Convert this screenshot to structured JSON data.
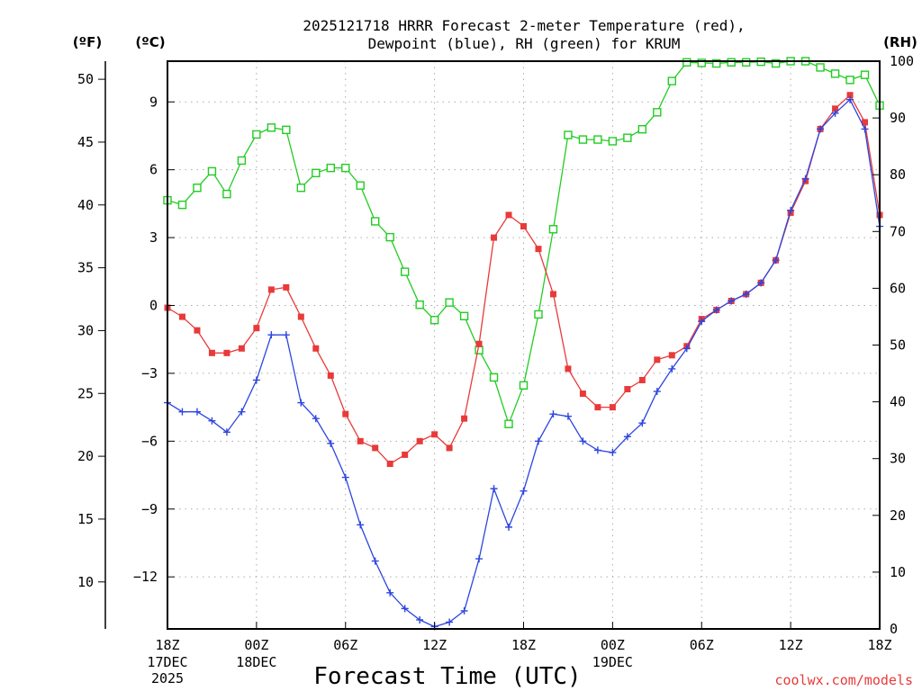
{
  "chart_data": {
    "type": "line",
    "title_line1": "2025121718 HRRR Forecast 2-meter Temperature (red),",
    "title_line2": "Dewpoint (blue), RH (green) for KRUM",
    "xlabel": "Forecast Time (UTC)",
    "unit_f": "(ºF)",
    "unit_c": "(ºC)",
    "unit_rh": "(RH)",
    "credit": "coolwx.com/models",
    "colors": {
      "temperature": "#e83a3a",
      "dewpoint": "#2d45e0",
      "rh": "#22cc22",
      "axis": "#000000",
      "grid": "#aaaaaa"
    },
    "x_range_hours": [
      0,
      48
    ],
    "ylim_c": [
      -14.3,
      10.8
    ],
    "ylim_rh": [
      0,
      100
    ],
    "x_ticks": [
      {
        "hour": 0,
        "label": "18Z",
        "sub1": "17DEC",
        "sub2": "2025"
      },
      {
        "hour": 6,
        "label": "00Z",
        "sub1": "18DEC",
        "sub2": ""
      },
      {
        "hour": 12,
        "label": "06Z",
        "sub1": "",
        "sub2": ""
      },
      {
        "hour": 18,
        "label": "12Z",
        "sub1": "",
        "sub2": ""
      },
      {
        "hour": 24,
        "label": "18Z",
        "sub1": "",
        "sub2": ""
      },
      {
        "hour": 30,
        "label": "00Z",
        "sub1": "19DEC",
        "sub2": ""
      },
      {
        "hour": 36,
        "label": "06Z",
        "sub1": "",
        "sub2": ""
      },
      {
        "hour": 42,
        "label": "12Z",
        "sub1": "",
        "sub2": ""
      },
      {
        "hour": 48,
        "label": "18Z",
        "sub1": "",
        "sub2": ""
      }
    ],
    "c_ticks": [
      9,
      6,
      3,
      0,
      -3,
      -6,
      -9,
      -12
    ],
    "c_tick_labels": [
      "9",
      "6",
      "3",
      "0",
      "−3",
      "−6",
      "−9",
      "−12"
    ],
    "f_ticks": [
      50,
      45,
      40,
      35,
      30,
      25,
      20,
      15,
      10
    ],
    "rh_ticks": [
      100,
      90,
      80,
      70,
      60,
      50,
      40,
      30,
      20,
      10,
      0
    ],
    "series": [
      {
        "name": "Temperature",
        "unit": "C",
        "marker": "filled-square",
        "values": [
          -0.1,
          -0.5,
          -1.1,
          -2.1,
          -2.1,
          -1.9,
          -1.0,
          0.7,
          0.8,
          -0.5,
          -1.9,
          -3.1,
          -4.8,
          -6.0,
          -6.3,
          -7.0,
          -6.6,
          -6.0,
          -5.7,
          -6.3,
          -5.0,
          -1.7,
          3.0,
          4.0,
          3.5,
          2.5,
          0.5,
          -2.8,
          -3.9,
          -4.5,
          -4.5,
          -3.7,
          -3.3,
          -2.4,
          -2.2,
          -1.8,
          -0.6,
          -0.2,
          0.2,
          0.5,
          1.0,
          2.0,
          4.1,
          5.5,
          7.8,
          8.7,
          9.3,
          8.1,
          4.0
        ]
      },
      {
        "name": "Dewpoint",
        "unit": "C",
        "marker": "plus",
        "values": [
          -4.3,
          -4.7,
          -4.7,
          -5.1,
          -5.6,
          -4.7,
          -3.3,
          -1.3,
          -1.3,
          -4.3,
          -5.0,
          -6.1,
          -7.6,
          -9.7,
          -11.3,
          -12.7,
          -13.4,
          -13.9,
          -14.2,
          -14.0,
          -13.5,
          -11.2,
          -8.1,
          -9.8,
          -8.2,
          -6.0,
          -4.8,
          -4.9,
          -6.0,
          -6.4,
          -6.5,
          -5.8,
          -5.2,
          -3.8,
          -2.8,
          -1.9,
          -0.7,
          -0.2,
          0.2,
          0.5,
          1.0,
          2.0,
          4.2,
          5.6,
          7.8,
          8.5,
          9.1,
          7.8,
          3.5
        ]
      },
      {
        "name": "RH",
        "unit": "%",
        "marker": "open-square",
        "values": [
          75.5,
          74.7,
          77.7,
          80.6,
          76.6,
          82.5,
          87.1,
          88.3,
          87.9,
          77.7,
          80.3,
          81.2,
          81.2,
          78.1,
          71.8,
          69.0,
          62.9,
          57.1,
          54.4,
          57.5,
          55.1,
          49.1,
          44.3,
          36.1,
          42.9,
          55.4,
          70.4,
          87.0,
          86.2,
          86.2,
          85.9,
          86.5,
          88.0,
          91.0,
          96.5,
          99.8,
          99.7,
          99.6,
          99.8,
          99.8,
          99.9,
          99.6,
          100,
          100,
          98.9,
          97.8,
          96.7,
          97.6,
          92.2
        ]
      }
    ]
  }
}
